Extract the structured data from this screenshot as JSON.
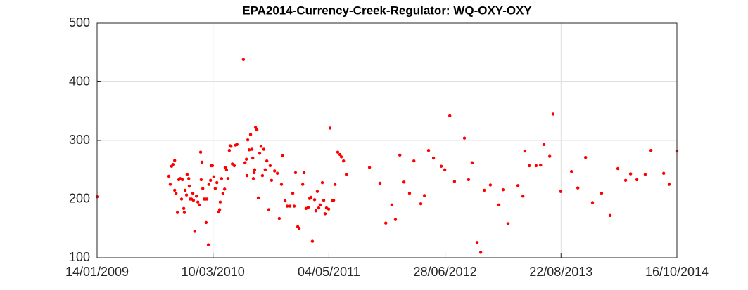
{
  "chart_data": {
    "type": "scatter",
    "title": "EPA2014-Currency-Creek-Regulator: WQ-OXY-OXY",
    "xlim": [
      "14/01/2009",
      "16/10/2014"
    ],
    "xticks": [
      "14/01/2009",
      "10/03/2010",
      "04/05/2011",
      "28/06/2012",
      "22/08/2013",
      "16/10/2014"
    ],
    "ylim": [
      100,
      500
    ],
    "yticks": [
      100,
      200,
      300,
      400,
      500
    ],
    "grid": true,
    "series": [
      {
        "color": "#ff0000",
        "x": [
          "14/01/2009",
          "01/10/2009",
          "06/10/2009",
          "11/10/2009",
          "16/10/2009",
          "22/10/2009",
          "22/10/2009",
          "27/10/2009",
          "01/11/2009",
          "06/11/2009",
          "11/11/2009",
          "16/11/2009",
          "19/11/2009",
          "24/11/2009",
          "26/11/2009",
          "29/11/2009",
          "04/12/2009",
          "06/12/2009",
          "12/12/2009",
          "14/12/2009",
          "17/12/2009",
          "22/12/2009",
          "27/12/2009",
          "29/12/2009",
          "03/01/2010",
          "09/01/2010",
          "14/01/2010",
          "19/01/2010",
          "24/01/2010",
          "26/01/2010",
          "29/01/2010",
          "01/02/2010",
          "06/02/2010",
          "11/02/2010",
          "13/02/2010",
          "16/02/2010",
          "21/02/2010",
          "23/02/2010",
          "01/03/2010",
          "03/03/2010",
          "08/03/2010",
          "13/03/2010",
          "18/03/2010",
          "24/03/2010",
          "29/03/2010",
          "03/04/2010",
          "05/04/2010",
          "10/04/2010",
          "15/04/2010",
          "21/04/2010",
          "23/04/2010",
          "28/04/2010",
          "03/05/2010",
          "08/05/2010",
          "11/05/2010",
          "14/05/2010",
          "19/05/2010",
          "26/05/2010",
          "31/05/2010",
          "05/06/2010",
          "28/06/2010",
          "04/07/2010",
          "09/07/2010",
          "11/07/2010",
          "14/07/2010",
          "19/07/2010",
          "24/07/2010",
          "29/07/2010",
          "01/08/2010",
          "03/08/2010",
          "06/08/2010",
          "08/08/2010",
          "11/08/2010",
          "16/08/2010",
          "21/08/2010",
          "26/08/2010",
          "31/08/2010",
          "05/09/2010",
          "10/09/2010",
          "15/09/2010",
          "21/09/2010",
          "28/09/2010",
          "03/10/2010",
          "08/10/2010",
          "19/10/2010",
          "29/10/2010",
          "05/11/2010",
          "13/11/2010",
          "18/11/2010",
          "26/11/2010",
          "04/12/2010",
          "14/12/2010",
          "24/12/2010",
          "29/12/2010",
          "03/01/2011",
          "11/01/2011",
          "16/01/2011",
          "29/01/2011",
          "03/02/2011",
          "10/02/2011",
          "18/02/2011",
          "23/02/2011",
          "28/02/2011",
          "05/03/2011",
          "13/03/2011",
          "18/03/2011",
          "23/03/2011",
          "28/03/2011",
          "02/04/2011",
          "10/04/2011",
          "15/04/2011",
          "20/04/2011",
          "25/04/2011",
          "03/05/2011",
          "08/05/2011",
          "16/05/2011",
          "21/05/2011",
          "26/05/2011",
          "05/06/2011",
          "13/06/2011",
          "18/06/2011",
          "26/06/2011",
          "06/07/2011",
          "28/09/2011",
          "05/11/2011",
          "26/11/2011",
          "18/12/2011",
          "31/12/2011",
          "16/01/2012",
          "31/01/2012",
          "20/02/2012",
          "07/03/2012",
          "01/04/2012",
          "14/04/2012",
          "29/04/2012",
          "17/05/2012",
          "14/06/2012",
          "27/06/2012",
          "15/07/2012",
          "01/08/2012",
          "06/09/2012",
          "21/09/2012",
          "04/10/2012",
          "22/10/2012",
          "04/11/2012",
          "17/11/2012",
          "09/12/2012",
          "09/01/2013",
          "24/01/2013",
          "11/02/2013",
          "19/03/2013",
          "06/04/2013",
          "13/04/2013",
          "29/04/2013",
          "24/05/2013",
          "09/06/2013",
          "21/06/2013",
          "12/07/2013",
          "24/07/2013",
          "21/08/2013",
          "29/09/2013",
          "22/10/2013",
          "19/11/2013",
          "14/12/2013",
          "16/01/2014",
          "16/02/2014",
          "16/03/2014",
          "13/04/2014",
          "01/05/2014",
          "24/05/2014",
          "23/06/2014",
          "14/07/2014",
          "29/08/2014",
          "18/09/2014",
          "16/10/2014"
        ],
        "values": [
          204,
          239,
          225,
          256,
          259,
          266,
          215,
          210,
          177,
          233,
          235,
          200,
          233,
          184,
          177,
          215,
          207,
          242,
          235,
          222,
          200,
          200,
          210,
          198,
          145,
          205,
          195,
          190,
          280,
          233,
          263,
          218,
          200,
          200,
          160,
          200,
          122,
          225,
          232,
          257,
          257,
          238,
          218,
          228,
          178,
          182,
          195,
          235,
          210,
          217,
          254,
          250,
          235,
          283,
          291,
          290,
          260,
          257,
          292,
          293,
          438,
          262,
          268,
          240,
          301,
          284,
          310,
          285,
          270,
          235,
          245,
          250,
          322,
          318,
          202,
          278,
          290,
          240,
          285,
          250,
          265,
          182,
          257,
          232,
          248,
          244,
          167,
          225,
          274,
          197,
          188,
          188,
          210,
          188,
          245,
          153,
          150,
          225,
          245,
          184,
          186,
          201,
          203,
          128,
          199,
          180,
          213,
          185,
          190,
          228,
          198,
          175,
          185,
          183,
          321,
          198,
          198,
          225,
          280,
          276,
          272,
          265,
          242,
          254,
          227,
          159,
          190,
          165,
          275,
          229,
          210,
          265,
          192,
          206,
          283,
          270,
          256,
          250,
          342,
          230,
          304,
          233,
          262,
          126,
          109,
          215,
          224,
          190,
          216,
          158,
          223,
          205,
          282,
          257,
          257,
          258,
          293,
          273,
          345,
          213,
          247,
          219,
          271,
          194,
          210,
          172,
          252,
          232,
          243,
          233,
          242,
          283,
          244,
          225,
          282
        ]
      }
    ]
  }
}
